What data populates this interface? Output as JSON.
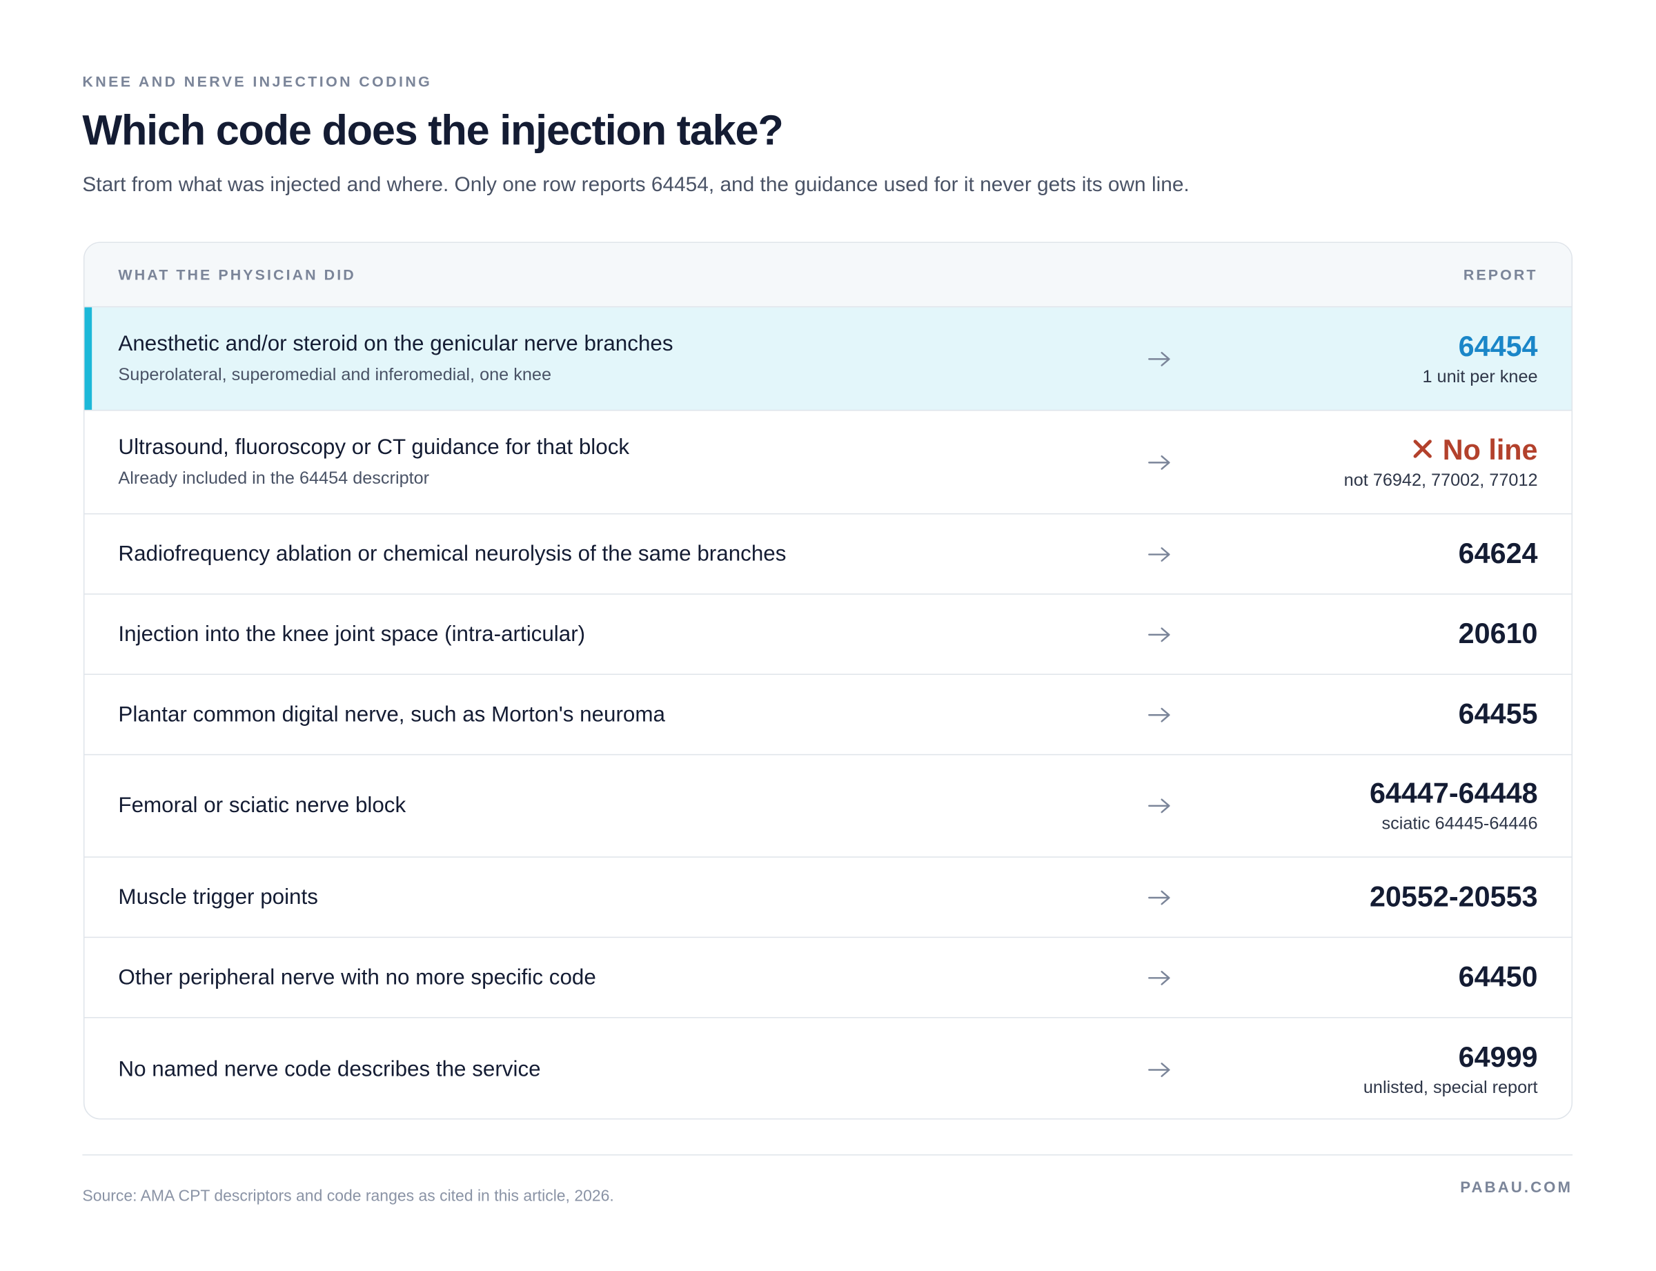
{
  "header": {
    "eyebrow": "KNEE AND NERVE INJECTION CODING",
    "title": "Which code does the injection take?",
    "subtitle": "Start from what was injected and where. Only one row reports 64454, and the guidance used for it never gets its own line."
  },
  "table": {
    "columns": [
      "WHAT THE PHYSICIAN DID",
      "REPORT"
    ],
    "rows": [
      {
        "description": "Anesthetic and/or steroid on the genicular nerve branches",
        "detail": "Superolateral, superomedial and inferomedial, one knee",
        "code": "64454",
        "note": "1 unit per knee",
        "highlighted": true
      },
      {
        "description": "Ultrasound, fluoroscopy or CT guidance for that block",
        "detail": "Already included in the 64454 descriptor",
        "code": "No line",
        "note": "not 76942, 77002, 77012",
        "excluded": true
      },
      {
        "description": "Radiofrequency ablation or chemical neurolysis of the same branches",
        "code": "64624"
      },
      {
        "description": "Injection into the knee joint space (intra-articular)",
        "code": "20610"
      },
      {
        "description": "Plantar common digital nerve, such as Morton's neuroma",
        "code": "64455"
      },
      {
        "description": "Femoral or sciatic nerve block",
        "code": "64447-64448",
        "note": "sciatic 64445-64446"
      },
      {
        "description": "Muscle trigger points",
        "code": "20552-20553"
      },
      {
        "description": "Other peripheral nerve with no more specific code",
        "code": "64450"
      },
      {
        "description": "No named nerve code describes the service",
        "code": "64999",
        "note": "unlisted, special report"
      }
    ]
  },
  "footer": {
    "source": "Source: AMA CPT descriptors and code ranges as cited in this article, 2026.",
    "brand": "PABAU.COM"
  }
}
